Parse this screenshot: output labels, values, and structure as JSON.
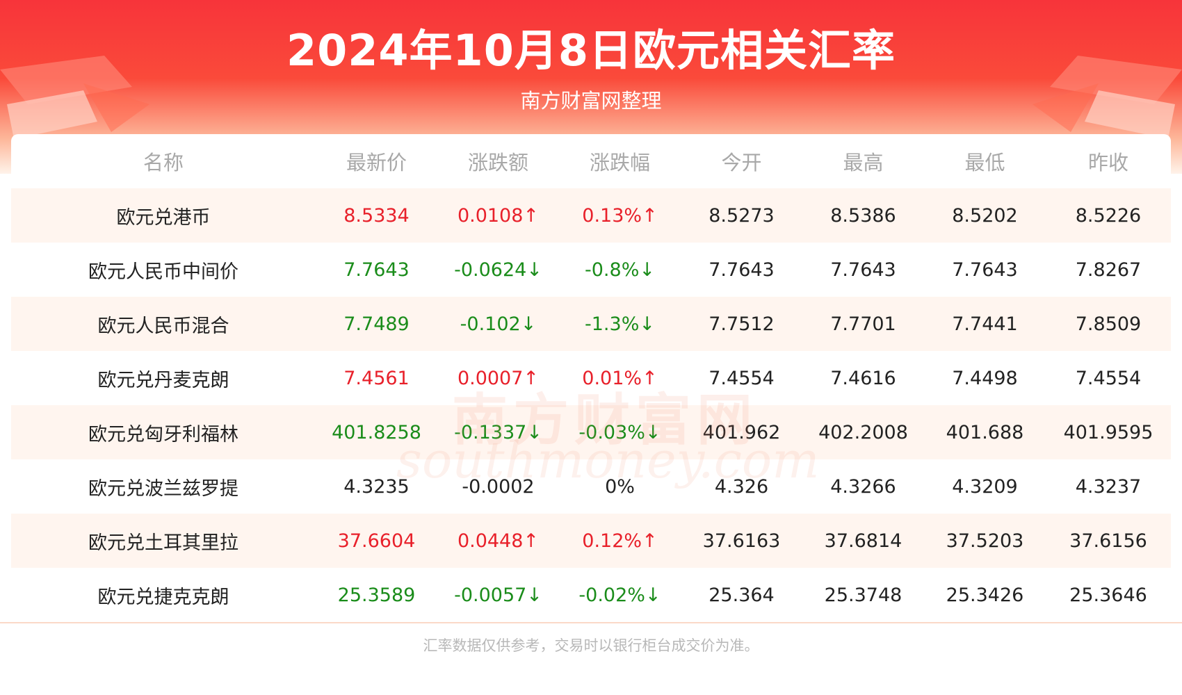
{
  "header": {
    "title": "2024年10月8日欧元相关汇率",
    "subtitle": "南方财富网整理"
  },
  "table": {
    "columns": [
      "名称",
      "最新价",
      "涨跌额",
      "涨跌幅",
      "今开",
      "最高",
      "最低",
      "昨收"
    ],
    "rows": [
      {
        "name": "欧元兑港币",
        "latest": "8.5334",
        "change": "0.0108↑",
        "pct": "0.13%↑",
        "open": "8.5273",
        "high": "8.5386",
        "low": "8.5202",
        "prev": "8.5226",
        "trend": "up"
      },
      {
        "name": "欧元人民币中间价",
        "latest": "7.7643",
        "change": "-0.0624↓",
        "pct": "-0.8%↓",
        "open": "7.7643",
        "high": "7.7643",
        "low": "7.7643",
        "prev": "7.8267",
        "trend": "down"
      },
      {
        "name": "欧元人民币混合",
        "latest": "7.7489",
        "change": "-0.102↓",
        "pct": "-1.3%↓",
        "open": "7.7512",
        "high": "7.7701",
        "low": "7.7441",
        "prev": "7.8509",
        "trend": "down"
      },
      {
        "name": "欧元兑丹麦克朗",
        "latest": "7.4561",
        "change": "0.0007↑",
        "pct": "0.01%↑",
        "open": "7.4554",
        "high": "7.4616",
        "low": "7.4498",
        "prev": "7.4554",
        "trend": "up"
      },
      {
        "name": "欧元兑匈牙利福林",
        "latest": "401.8258",
        "change": "-0.1337↓",
        "pct": "-0.03%↓",
        "open": "401.962",
        "high": "402.2008",
        "low": "401.688",
        "prev": "401.9595",
        "trend": "down"
      },
      {
        "name": "欧元兑波兰兹罗提",
        "latest": "4.3235",
        "change": "-0.0002",
        "pct": "0%",
        "open": "4.326",
        "high": "4.3266",
        "low": "4.3209",
        "prev": "4.3237",
        "trend": "flat"
      },
      {
        "name": "欧元兑土耳其里拉",
        "latest": "37.6604",
        "change": "0.0448↑",
        "pct": "0.12%↑",
        "open": "37.6163",
        "high": "37.6814",
        "low": "37.5203",
        "prev": "37.6156",
        "trend": "up"
      },
      {
        "name": "欧元兑捷克克朗",
        "latest": "25.3589",
        "change": "-0.0057↓",
        "pct": "-0.02%↓",
        "open": "25.364",
        "high": "25.3748",
        "low": "25.3426",
        "prev": "25.3646",
        "trend": "down"
      }
    ]
  },
  "watermark": {
    "cn": "南方财富网",
    "en": "southmoney.com"
  },
  "footer": {
    "note": "汇率数据仅供参考，交易时以银行柜台成交价为准。"
  },
  "colors": {
    "up": "#e8202a",
    "down": "#1a8c1a",
    "header_red": "#f7343a",
    "alt_row": "#fff5ef"
  }
}
